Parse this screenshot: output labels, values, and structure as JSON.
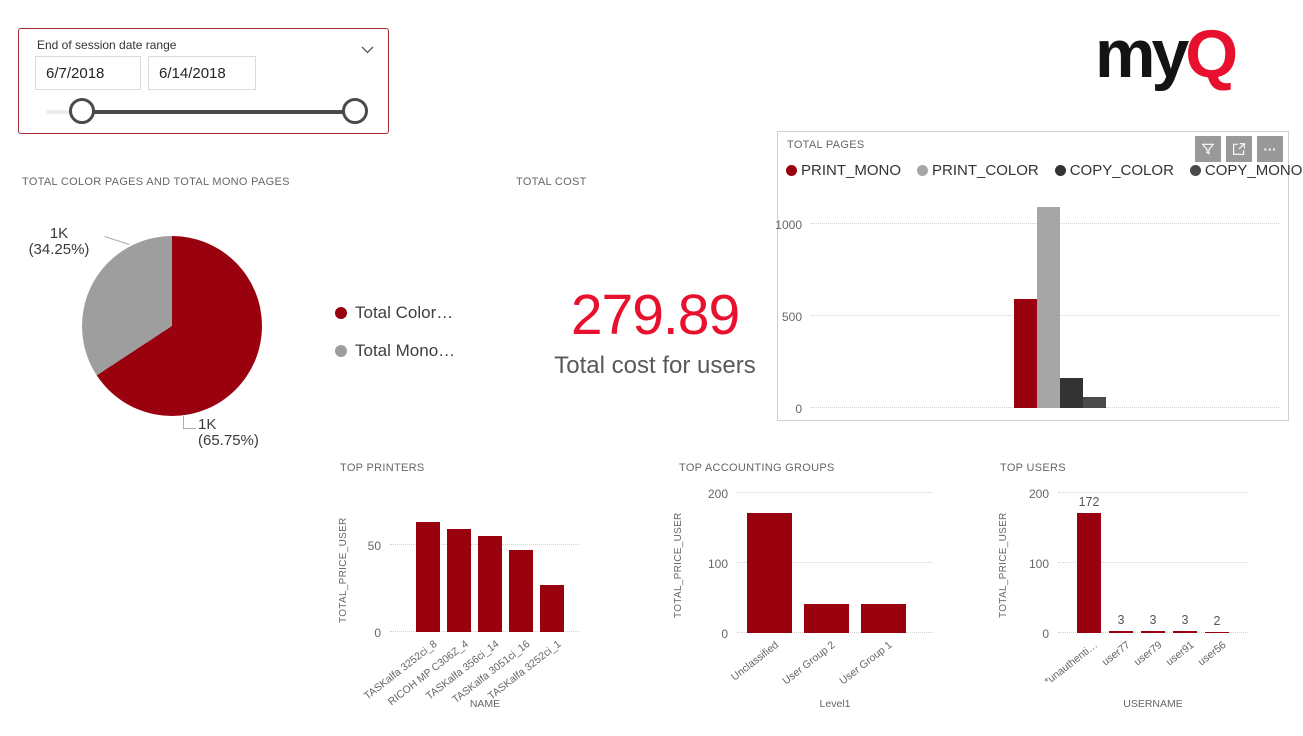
{
  "colors": {
    "series_red": "#9A010F",
    "bright_red": "#E8112D",
    "print_color_gray": "#A6A6A6",
    "copy_color_dark": "#333333",
    "copy_mono_gray": "#4A4A4A",
    "slicer_border": "#A62B31",
    "logo_black": "#141414"
  },
  "slicer": {
    "label": "End of session date range",
    "start_date": "6/7/2018",
    "end_date": "6/14/2018"
  },
  "logo": {
    "text_black": "my",
    "text_red": "Q"
  },
  "card": {
    "title": "TOTAL COST",
    "value": "279.89",
    "label": "Total cost for users"
  },
  "toolbar": {
    "filter": "filter",
    "focus_mode": "focus mode",
    "more_options": "…"
  },
  "chart_data": [
    {
      "type": "pie",
      "title": "TOTAL COLOR PAGES AND TOTAL MONO PAGES",
      "legend_position": "right",
      "slices": [
        {
          "name": "Total Color…",
          "value_label": "1K",
          "pct": 65.75,
          "pct_label": "(65.75%)",
          "color": "#9A010F"
        },
        {
          "name": "Total Mono…",
          "value_label": "1K",
          "pct": 34.25,
          "pct_label": "(34.25%)",
          "color": "#9E9E9E"
        }
      ]
    },
    {
      "type": "bar",
      "title": "TOTAL PAGES",
      "categories": [
        "PRINT_MONO",
        "PRINT_COLOR",
        "COPY_COLOR",
        "COPY_MONO"
      ],
      "values": [
        590,
        1090,
        165,
        60
      ],
      "colors": [
        "#9A010F",
        "#A6A6A6",
        "#333333",
        "#4A4A4A"
      ],
      "yticks": [
        0,
        500,
        1000
      ],
      "ylim": [
        0,
        1200
      ],
      "grid": "dotted",
      "legend_position": "top"
    },
    {
      "type": "bar",
      "title": "TOP PRINTERS",
      "categories": [
        "TASKalfa 3252ci_8",
        "RICOH MP C306Z_4",
        "TASKalfa 356ci_14",
        "TASKalfa 3051ci_16",
        "TASKalfa 3252ci_1"
      ],
      "values": [
        63,
        59,
        55,
        47,
        27
      ],
      "xlabel": "NAME",
      "ylabel": "TOTAL_PRICE_USER",
      "yticks": [
        0,
        50
      ],
      "ylim": [
        0,
        70
      ],
      "grid": "dotted"
    },
    {
      "type": "bar",
      "title": "TOP ACCOUNTING GROUPS",
      "categories": [
        "Unclassified",
        "User Group 2",
        "User Group 1"
      ],
      "values": [
        171,
        41,
        41
      ],
      "xlabel": "Level1",
      "ylabel": "TOTAL_PRICE_USER",
      "yticks": [
        0,
        100,
        200
      ],
      "ylim": [
        0,
        200
      ],
      "grid": "dotted"
    },
    {
      "type": "bar",
      "title": "TOP USERS",
      "categories": [
        "*unauthenti…",
        "user77",
        "user79",
        "user91",
        "user56"
      ],
      "values": [
        172,
        3,
        3,
        3,
        2
      ],
      "data_labels": [
        "172",
        "3",
        "3",
        "3",
        "2"
      ],
      "xlabel": "USERNAME",
      "ylabel": "TOTAL_PRICE_USER",
      "yticks": [
        0,
        100,
        200
      ],
      "ylim": [
        0,
        200
      ],
      "grid": "dotted"
    }
  ]
}
